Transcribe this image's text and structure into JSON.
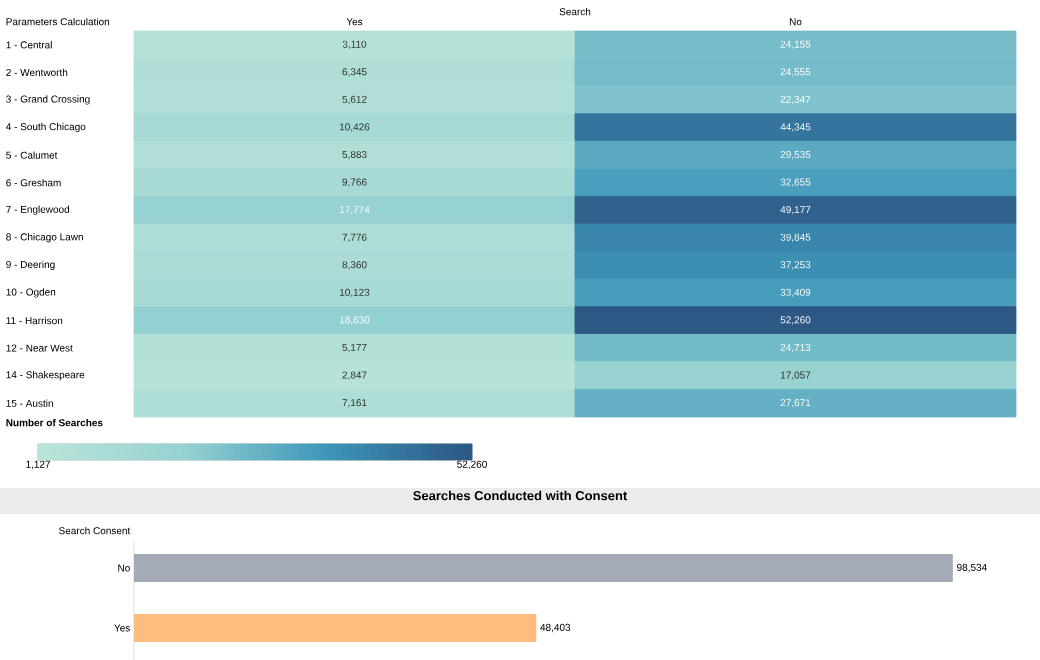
{
  "chart_data": [
    {
      "type": "heatmap",
      "xlabel": "Search",
      "ylabel": "Parameters Calculation",
      "clabel": "Number of Searches",
      "categories": [
        "Yes",
        "No"
      ],
      "y_categories": [
        "1 - Central",
        "2 - Wentworth",
        "3 - Grand Crossing",
        "4 - South Chicago",
        "5 - Calumet",
        "6 - Gresham",
        "7 - Englewood",
        "8 - Chicago Lawn",
        "9 - Deering",
        "10 - Ogden",
        "11 - Harrison",
        "12 - Near West",
        "14 - Shakespeare",
        "15 - Austin"
      ],
      "cells": [
        [
          3110,
          24155
        ],
        [
          6345,
          24555
        ],
        [
          5612,
          22347
        ],
        [
          10426,
          44345
        ],
        [
          5883,
          29535
        ],
        [
          9766,
          32655
        ],
        [
          17774,
          49177
        ],
        [
          7776,
          39845
        ],
        [
          8360,
          37253
        ],
        [
          10123,
          33409
        ],
        [
          18630,
          52260
        ],
        [
          5177,
          24713
        ],
        [
          2847,
          17057
        ],
        [
          7161,
          27671
        ]
      ],
      "cell_labels": [
        [
          "3,110",
          "24,155"
        ],
        [
          "6,345",
          "24,555"
        ],
        [
          "5,612",
          "22,347"
        ],
        [
          "10,426",
          "44,345"
        ],
        [
          "5,883",
          "29,535"
        ],
        [
          "9,766",
          "32,655"
        ],
        [
          "17,774",
          "49,177"
        ],
        [
          "7,776",
          "39,845"
        ],
        [
          "8,360",
          "37,253"
        ],
        [
          "10,123",
          "33,409"
        ],
        [
          "18,630",
          "52,260"
        ],
        [
          "5,177",
          "24,713"
        ],
        [
          "2,847",
          "17,057"
        ],
        [
          "7,161",
          "27,671"
        ]
      ],
      "clim": [
        1127,
        52260
      ],
      "cticks": [
        {
          "value": 1127,
          "label": "1,127"
        },
        {
          "value": 52260,
          "label": "52,260"
        }
      ]
    },
    {
      "type": "bar",
      "orientation": "horizontal",
      "title": "Searches Conducted with Consent",
      "ylabel": "Search Consent",
      "categories": [
        "No",
        "Yes"
      ],
      "values": [
        98534,
        48403
      ],
      "colors": [
        "#a3abb6",
        "#fdbd7e"
      ],
      "value_labels": [
        "98,534",
        "48,403"
      ],
      "tick_labels": "y"
    }
  ]
}
